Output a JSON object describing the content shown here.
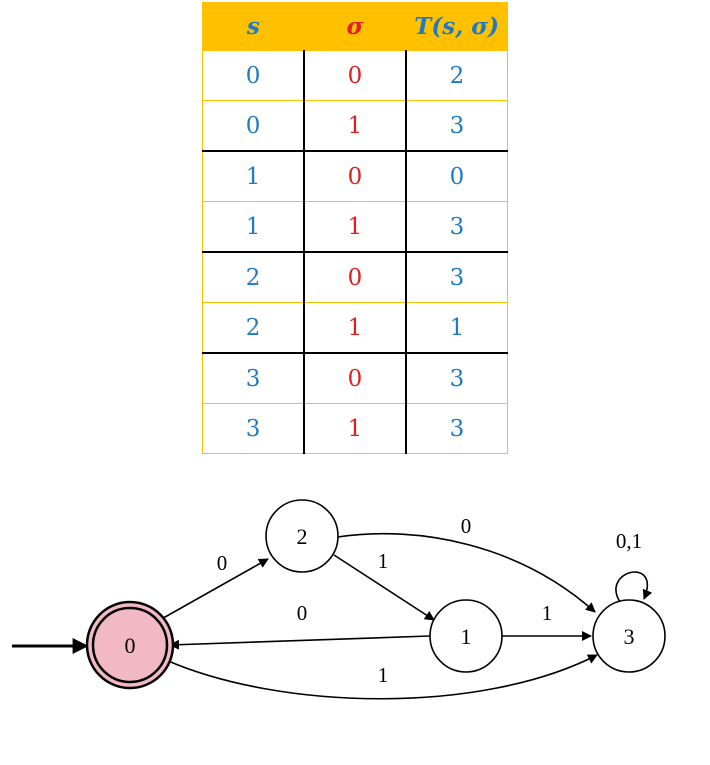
{
  "table": {
    "headers": [
      "s",
      "σ",
      "T(s, σ)"
    ],
    "rows": [
      [
        "0",
        "0",
        "2"
      ],
      [
        "0",
        "1",
        "3"
      ],
      [
        "1",
        "0",
        "0"
      ],
      [
        "1",
        "1",
        "3"
      ],
      [
        "2",
        "0",
        "3"
      ],
      [
        "2",
        "1",
        "1"
      ],
      [
        "3",
        "0",
        "3"
      ],
      [
        "3",
        "1",
        "3"
      ]
    ]
  },
  "colors": {
    "state_column": "#1f7ac4",
    "symbol_column": "#e02020",
    "header_background": "#ffc000",
    "accepting_state_fill": "#f2b8c6"
  },
  "diagram": {
    "states": [
      {
        "label": "0",
        "start": true,
        "accepting": true
      },
      {
        "label": "2"
      },
      {
        "label": "1"
      },
      {
        "label": "3"
      }
    ],
    "edges": [
      {
        "from": "0",
        "to": "2",
        "label": "0"
      },
      {
        "from": "2",
        "to": "1",
        "label": "1"
      },
      {
        "from": "2",
        "to": "3",
        "label": "0"
      },
      {
        "from": "1",
        "to": "0",
        "label": "0"
      },
      {
        "from": "1",
        "to": "3",
        "label": "1"
      },
      {
        "from": "0",
        "to": "3",
        "label": "1"
      },
      {
        "from": "3",
        "to": "3",
        "label": "0,1"
      }
    ]
  }
}
